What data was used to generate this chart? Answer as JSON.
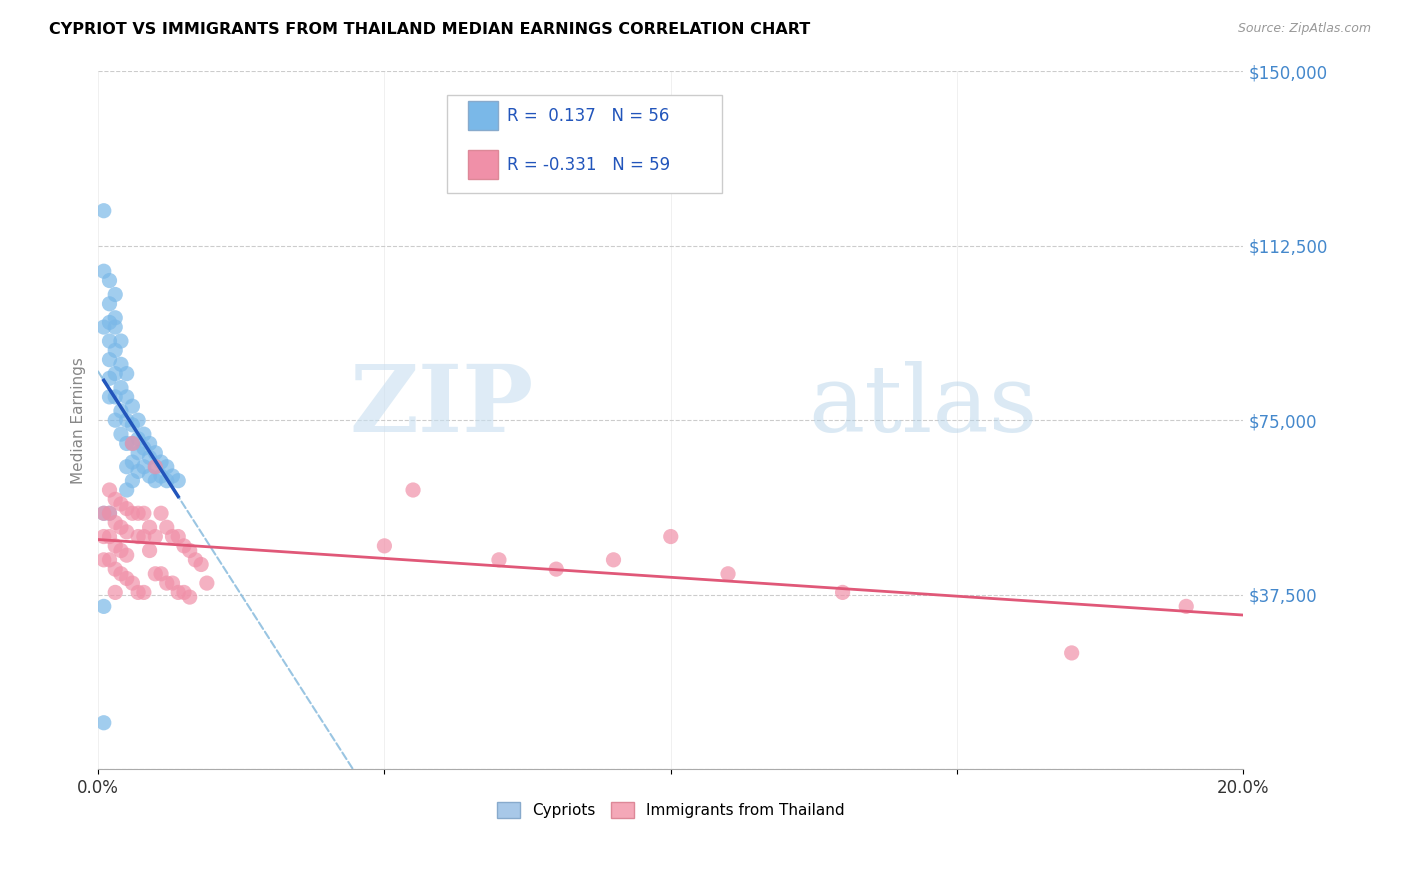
{
  "title": "CYPRIOT VS IMMIGRANTS FROM THAILAND MEDIAN EARNINGS CORRELATION CHART",
  "source": "Source: ZipAtlas.com",
  "ylabel": "Median Earnings",
  "x_min": 0.0,
  "x_max": 0.2,
  "y_min": 0,
  "y_max": 150000,
  "yticks": [
    0,
    37500,
    75000,
    112500,
    150000
  ],
  "ytick_labels": [
    "",
    "$37,500",
    "$75,000",
    "$112,500",
    "$150,000"
  ],
  "xticks": [
    0.0,
    0.05,
    0.1,
    0.15,
    0.2
  ],
  "xtick_labels": [
    "0.0%",
    "",
    "",
    "",
    "20.0%"
  ],
  "legend_entries": [
    {
      "label": "Cypriots",
      "color": "#a8c8e8"
    },
    {
      "label": "Immigrants from Thailand",
      "color": "#f4a8b8"
    }
  ],
  "R_cypriot": 0.137,
  "N_cypriot": 56,
  "R_thailand": -0.331,
  "N_thailand": 59,
  "cypriot_color": "#7ab8e8",
  "thailand_color": "#f090a8",
  "cypriot_line_color": "#2255bb",
  "thailand_line_color": "#e05878",
  "trendline_extend_color": "#88bbdd",
  "watermark_zip": "ZIP",
  "watermark_atlas": "atlas",
  "cypriot_scatter_x": [
    0.001,
    0.001,
    0.001,
    0.001,
    0.002,
    0.002,
    0.002,
    0.002,
    0.002,
    0.002,
    0.002,
    0.003,
    0.003,
    0.003,
    0.003,
    0.003,
    0.003,
    0.004,
    0.004,
    0.004,
    0.004,
    0.004,
    0.005,
    0.005,
    0.005,
    0.005,
    0.005,
    0.005,
    0.006,
    0.006,
    0.006,
    0.006,
    0.006,
    0.007,
    0.007,
    0.007,
    0.007,
    0.008,
    0.008,
    0.008,
    0.009,
    0.009,
    0.009,
    0.01,
    0.01,
    0.01,
    0.011,
    0.011,
    0.012,
    0.012,
    0.013,
    0.014,
    0.001,
    0.002,
    0.003,
    0.001
  ],
  "cypriot_scatter_y": [
    120000,
    107000,
    95000,
    10000,
    105000,
    100000,
    96000,
    92000,
    88000,
    84000,
    80000,
    102000,
    95000,
    90000,
    85000,
    80000,
    75000,
    92000,
    87000,
    82000,
    77000,
    72000,
    85000,
    80000,
    75000,
    70000,
    65000,
    60000,
    78000,
    74000,
    70000,
    66000,
    62000,
    75000,
    71000,
    68000,
    64000,
    72000,
    69000,
    65000,
    70000,
    67000,
    63000,
    68000,
    65000,
    62000,
    66000,
    63000,
    65000,
    62000,
    63000,
    62000,
    55000,
    55000,
    97000,
    35000
  ],
  "thailand_scatter_x": [
    0.001,
    0.001,
    0.001,
    0.002,
    0.002,
    0.002,
    0.002,
    0.003,
    0.003,
    0.003,
    0.003,
    0.003,
    0.004,
    0.004,
    0.004,
    0.004,
    0.005,
    0.005,
    0.005,
    0.005,
    0.006,
    0.006,
    0.006,
    0.007,
    0.007,
    0.007,
    0.008,
    0.008,
    0.008,
    0.009,
    0.009,
    0.01,
    0.01,
    0.01,
    0.011,
    0.011,
    0.012,
    0.012,
    0.013,
    0.013,
    0.014,
    0.014,
    0.015,
    0.015,
    0.016,
    0.016,
    0.017,
    0.018,
    0.019,
    0.1,
    0.05,
    0.07,
    0.08,
    0.055,
    0.11,
    0.13,
    0.09,
    0.19,
    0.17
  ],
  "thailand_scatter_y": [
    55000,
    50000,
    45000,
    60000,
    55000,
    50000,
    45000,
    58000,
    53000,
    48000,
    43000,
    38000,
    57000,
    52000,
    47000,
    42000,
    56000,
    51000,
    46000,
    41000,
    70000,
    55000,
    40000,
    55000,
    50000,
    38000,
    55000,
    50000,
    38000,
    52000,
    47000,
    65000,
    50000,
    42000,
    55000,
    42000,
    52000,
    40000,
    50000,
    40000,
    50000,
    38000,
    48000,
    38000,
    47000,
    37000,
    45000,
    44000,
    40000,
    50000,
    48000,
    45000,
    43000,
    60000,
    42000,
    38000,
    45000,
    35000,
    25000
  ]
}
